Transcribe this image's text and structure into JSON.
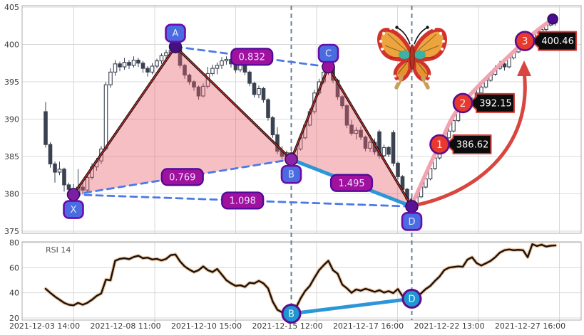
{
  "rsi_label": "RSI 14",
  "colors": {
    "grid": "#d9d9d9",
    "panel_border": "#ababab",
    "candle": "#3a4150",
    "candle_up_fill": "#ffffff",
    "pattern_fill": "rgba(233,95,108,0.40)",
    "pattern_line": "#111111",
    "pattern_line_core": "#cf2e2e",
    "dashed_blue": "#4d79e8",
    "thick_blue": "#2d96d8",
    "vline_gray": "#5f7183",
    "badge_blue": "#4b6ce0",
    "badge_border": "#690cac",
    "ratio_purple": "#a0119e",
    "ratio_border": "#4b0a9b",
    "dot_purple": "#5e1195",
    "target_red": "#e8392e",
    "target_border": "#5c0d8f",
    "label_bg": "#0c0c0c",
    "label_border": "#d43c35",
    "proj_pink": "#f2a3b1",
    "arrow_red": "#d9453f",
    "end_dot": "#4a0d8f",
    "rsi_line": "#1b120a",
    "rsi_halo": "#f0c9a8",
    "rsi_marker": "#1e96d2",
    "tick_text": "#3a3a3a"
  },
  "chart_data": {
    "type": "candlestick+rsi",
    "y_ticks": [
      405,
      400,
      395,
      390,
      385,
      380,
      375
    ],
    "rsi_ticks": [
      80,
      60,
      40,
      20
    ],
    "x_tick_labels": [
      "2021-12-03 14:00",
      "2021-12-08 11:00",
      "2021-12-10 15:00",
      "2021-12-15 12:00",
      "2021-12-17 16:00",
      "2021-12-22 13:00",
      "2021-12-27 16:00"
    ],
    "candles": [
      [
        391.0,
        392.3,
        386.2,
        386.6
      ],
      [
        386.6,
        386.9,
        383.5,
        384.0
      ],
      [
        384.0,
        384.3,
        381.5,
        382.9
      ],
      [
        382.9,
        384.3,
        382.5,
        383.3
      ],
      [
        383.3,
        383.5,
        380.3,
        381.2
      ],
      [
        381.2,
        381.5,
        379.7,
        380.6
      ],
      [
        380.6,
        381.3,
        379.5,
        380.1
      ],
      [
        380.1,
        383.3,
        379.9,
        380.9
      ],
      [
        380.9,
        381.6,
        379.9,
        380.5
      ],
      [
        380.5,
        382.5,
        380.2,
        382.2
      ],
      [
        382.2,
        384.1,
        381.9,
        383.6
      ],
      [
        383.6,
        384.8,
        383.1,
        384.4
      ],
      [
        384.4,
        386.4,
        384.0,
        386.0
      ],
      [
        386.0,
        395.0,
        385.8,
        394.6
      ],
      [
        394.6,
        396.8,
        394.2,
        396.3
      ],
      [
        396.3,
        397.9,
        395.8,
        397.4
      ],
      [
        397.4,
        397.7,
        396.4,
        397.0
      ],
      [
        397.0,
        398.2,
        396.6,
        397.6
      ],
      [
        397.6,
        397.9,
        396.7,
        397.2
      ],
      [
        397.2,
        398.4,
        396.9,
        397.9
      ],
      [
        397.9,
        398.2,
        397.0,
        397.5
      ],
      [
        397.5,
        397.8,
        396.2,
        396.8
      ],
      [
        396.8,
        397.1,
        395.7,
        396.3
      ],
      [
        396.3,
        397.5,
        396.0,
        397.1
      ],
      [
        397.1,
        398.1,
        396.8,
        397.8
      ],
      [
        397.8,
        398.8,
        397.4,
        398.5
      ],
      [
        398.5,
        399.3,
        398.1,
        398.9
      ],
      [
        398.9,
        399.6,
        398.5,
        399.2
      ],
      [
        399.2,
        399.8,
        398.8,
        399.5
      ],
      [
        399.5,
        399.7,
        396.8,
        397.2
      ],
      [
        397.2,
        397.4,
        395.4,
        395.9
      ],
      [
        395.9,
        396.1,
        394.6,
        395.0
      ],
      [
        395.0,
        395.2,
        393.8,
        394.3
      ],
      [
        394.3,
        394.5,
        392.6,
        393.1
      ],
      [
        393.1,
        394.8,
        392.9,
        394.4
      ],
      [
        394.4,
        397.0,
        394.1,
        396.1
      ],
      [
        396.1,
        397.3,
        395.8,
        396.8
      ],
      [
        396.8,
        397.6,
        396.0,
        397.2
      ],
      [
        397.2,
        398.3,
        396.7,
        397.8
      ],
      [
        397.8,
        398.4,
        397.3,
        398.0
      ],
      [
        398.0,
        398.3,
        396.9,
        397.4
      ],
      [
        397.4,
        397.7,
        396.2,
        396.6
      ],
      [
        396.6,
        398.0,
        396.3,
        397.5
      ],
      [
        397.5,
        397.8,
        395.9,
        396.3
      ],
      [
        396.3,
        396.5,
        394.4,
        394.8
      ],
      [
        394.8,
        395.0,
        392.9,
        393.3
      ],
      [
        393.3,
        394.5,
        392.8,
        394.1
      ],
      [
        394.1,
        394.3,
        392.2,
        392.6
      ],
      [
        392.6,
        392.8,
        389.8,
        390.2
      ],
      [
        390.2,
        390.4,
        387.5,
        387.9
      ],
      [
        387.9,
        388.9,
        385.3,
        385.7
      ],
      [
        385.7,
        386.4,
        384.6,
        385.0
      ],
      [
        385.0,
        385.8,
        384.3,
        385.5
      ],
      [
        385.5,
        385.7,
        384.3,
        384.6
      ],
      [
        384.6,
        386.3,
        384.4,
        386.0
      ],
      [
        386.0,
        388.0,
        385.8,
        387.5
      ],
      [
        387.5,
        389.6,
        387.3,
        389.2
      ],
      [
        389.2,
        391.4,
        389.0,
        391.0
      ],
      [
        391.0,
        393.9,
        390.7,
        393.5
      ],
      [
        393.5,
        395.4,
        393.2,
        395.0
      ],
      [
        395.0,
        396.7,
        394.7,
        396.3
      ],
      [
        396.3,
        397.6,
        395.9,
        397.0
      ],
      [
        397.0,
        397.6,
        394.8,
        395.2
      ],
      [
        395.2,
        395.4,
        392.6,
        393.0
      ],
      [
        393.0,
        393.2,
        391.4,
        391.8
      ],
      [
        391.8,
        392.0,
        388.8,
        389.2
      ],
      [
        389.2,
        389.9,
        387.8,
        388.1
      ],
      [
        388.1,
        388.9,
        387.3,
        388.5
      ],
      [
        388.5,
        389.0,
        387.2,
        387.6
      ],
      [
        387.6,
        387.8,
        385.7,
        386.1
      ],
      [
        386.1,
        387.2,
        385.6,
        386.9
      ],
      [
        386.9,
        387.4,
        385.2,
        385.6
      ],
      [
        388.3,
        388.6,
        384.7,
        385.1
      ],
      [
        385.1,
        386.6,
        384.9,
        386.2
      ],
      [
        386.2,
        386.4,
        384.9,
        385.3
      ],
      [
        388.2,
        388.5,
        383.7,
        384.1
      ],
      [
        384.1,
        384.3,
        381.9,
        382.3
      ],
      [
        382.3,
        382.5,
        380.2,
        380.6
      ],
      [
        380.6,
        380.8,
        378.9,
        379.3
      ],
      [
        379.3,
        379.6,
        378.0,
        378.4
      ],
      [
        378.4,
        380.0,
        378.1,
        379.6
      ],
      [
        379.6,
        381.4,
        379.4,
        380.9
      ],
      [
        380.9,
        382.4,
        380.7,
        382.0
      ],
      [
        382.0,
        383.9,
        381.8,
        383.4
      ],
      [
        383.4,
        385.2,
        383.2,
        384.8
      ],
      [
        384.8,
        386.7,
        384.6,
        386.3
      ],
      [
        386.3,
        387.9,
        386.1,
        387.5
      ],
      [
        387.5,
        388.8,
        387.3,
        388.4
      ],
      [
        388.4,
        390.2,
        388.2,
        389.8
      ],
      [
        389.8,
        391.4,
        389.6,
        391.0
      ],
      [
        391.0,
        392.6,
        390.8,
        392.2
      ],
      [
        392.2,
        392.5,
        391.3,
        391.8
      ],
      [
        391.8,
        393.0,
        391.6,
        392.6
      ],
      [
        392.6,
        393.9,
        392.4,
        393.5
      ],
      [
        393.5,
        394.7,
        393.3,
        394.3
      ],
      [
        394.3,
        395.6,
        394.1,
        395.2
      ],
      [
        395.2,
        396.4,
        395.0,
        396.0
      ],
      [
        396.0,
        397.2,
        395.8,
        396.8
      ],
      [
        396.8,
        397.8,
        396.6,
        397.4
      ],
      [
        397.4,
        397.7,
        396.5,
        397.0
      ],
      [
        397.0,
        398.6,
        396.8,
        398.2
      ],
      [
        398.2,
        399.4,
        398.0,
        399.0
      ],
      [
        399.0,
        400.3,
        398.8,
        399.9
      ],
      [
        399.9,
        400.8,
        399.2,
        400.4
      ],
      [
        400.4,
        400.6,
        399.3,
        400.0
      ],
      [
        400.0,
        401.3,
        399.8,
        400.9
      ],
      [
        400.9,
        401.9,
        400.7,
        401.5
      ],
      [
        401.5,
        402.4,
        401.3,
        402.0
      ],
      [
        402.0,
        403.0,
        401.8,
        402.6
      ],
      [
        402.6,
        403.5,
        402.4,
        403.1
      ],
      [
        403.1,
        403.4,
        402.5,
        402.9
      ]
    ],
    "rsi": [
      43.2,
      40,
      37,
      34.5,
      32,
      30.5,
      30,
      32,
      30.5,
      32,
      34.5,
      37.5,
      39.5,
      50.5,
      50,
      65.5,
      67,
      67.5,
      66.8,
      68.5,
      69.5,
      67.5,
      68,
      66.5,
      67,
      65.8,
      67,
      70,
      70.5,
      65,
      61,
      58.5,
      56.5,
      58,
      61,
      58,
      56.5,
      59,
      54.5,
      50,
      47.5,
      45.5,
      46,
      44.7,
      48,
      47.5,
      49.5,
      47.5,
      43.5,
      33,
      26.5,
      24.5,
      23.2,
      23.4,
      28,
      35.5,
      41.5,
      45.5,
      52,
      58,
      62,
      65.5,
      58,
      55.2,
      46.5,
      43.6,
      40,
      42.7,
      41.7,
      43.2,
      42.1,
      40.7,
      42.1,
      40.2,
      41.3,
      39.8,
      43,
      37.3,
      34.6,
      35.3,
      37.5,
      39.5,
      43,
      45.5,
      49.5,
      53,
      58,
      60,
      60.5,
      61,
      60.7,
      66.4,
      68.3,
      63.6,
      61.7,
      63.5,
      65.4,
      68.3,
      72,
      73.9,
      74.5,
      73.9,
      74.2,
      73.9,
      68.3,
      78.7,
      77.2,
      78.3,
      76.8,
      77.5,
      77.7
    ],
    "pattern": {
      "points": [
        {
          "label": "X",
          "i": 6,
          "price": 379.9,
          "side": "below",
          "dot": "#7b1fa2"
        },
        {
          "label": "A",
          "i": 28,
          "price": 399.7,
          "side": "above",
          "dot": "#44127e"
        },
        {
          "label": "B",
          "i": 53,
          "price": 384.6,
          "side": "below",
          "dot": "#8e24aa"
        },
        {
          "label": "C",
          "i": 61,
          "price": 397.0,
          "side": "above",
          "dot": "#9c119c"
        },
        {
          "label": "D",
          "i": 79,
          "price": 378.3,
          "side": "below",
          "dot": "#5a1396"
        }
      ],
      "fills": [
        [
          "X",
          "A",
          "B"
        ],
        [
          "B",
          "C",
          "D"
        ]
      ],
      "zigzag": [
        "X",
        "A",
        "B",
        "C",
        "D"
      ],
      "ratio_lines": [
        {
          "from": "A",
          "to": "C",
          "label": "0.832",
          "style": "dashed"
        },
        {
          "from": "X",
          "to": "B",
          "label": "0.769",
          "style": "dashed"
        },
        {
          "from": "X",
          "to": "D",
          "label": "1.098",
          "style": "dashed"
        },
        {
          "from": "B",
          "to": "D",
          "label": "1.495",
          "style": "solid"
        }
      ],
      "vlines": [
        "B",
        "D"
      ]
    },
    "targets": [
      {
        "num": "1",
        "label": "386.62",
        "i": 85,
        "price": 386.62
      },
      {
        "num": "2",
        "label": "392.15",
        "i": 90,
        "price": 392.15
      },
      {
        "num": "3",
        "label": "400.46",
        "i": 103.4,
        "price": 400.46
      }
    ],
    "projection": {
      "points": [
        {
          "i": 79,
          "price": 378.5
        },
        {
          "i": 85,
          "price": 386.62
        },
        {
          "i": 90,
          "price": 392.15
        },
        {
          "i": 103.4,
          "price": 400.46
        },
        {
          "i": 109.4,
          "price": 403.4
        }
      ]
    },
    "rsi_markers": [
      {
        "label": "B",
        "i": 53,
        "value": 23.4
      },
      {
        "label": "D",
        "i": 79,
        "value": 35.3
      }
    ]
  }
}
